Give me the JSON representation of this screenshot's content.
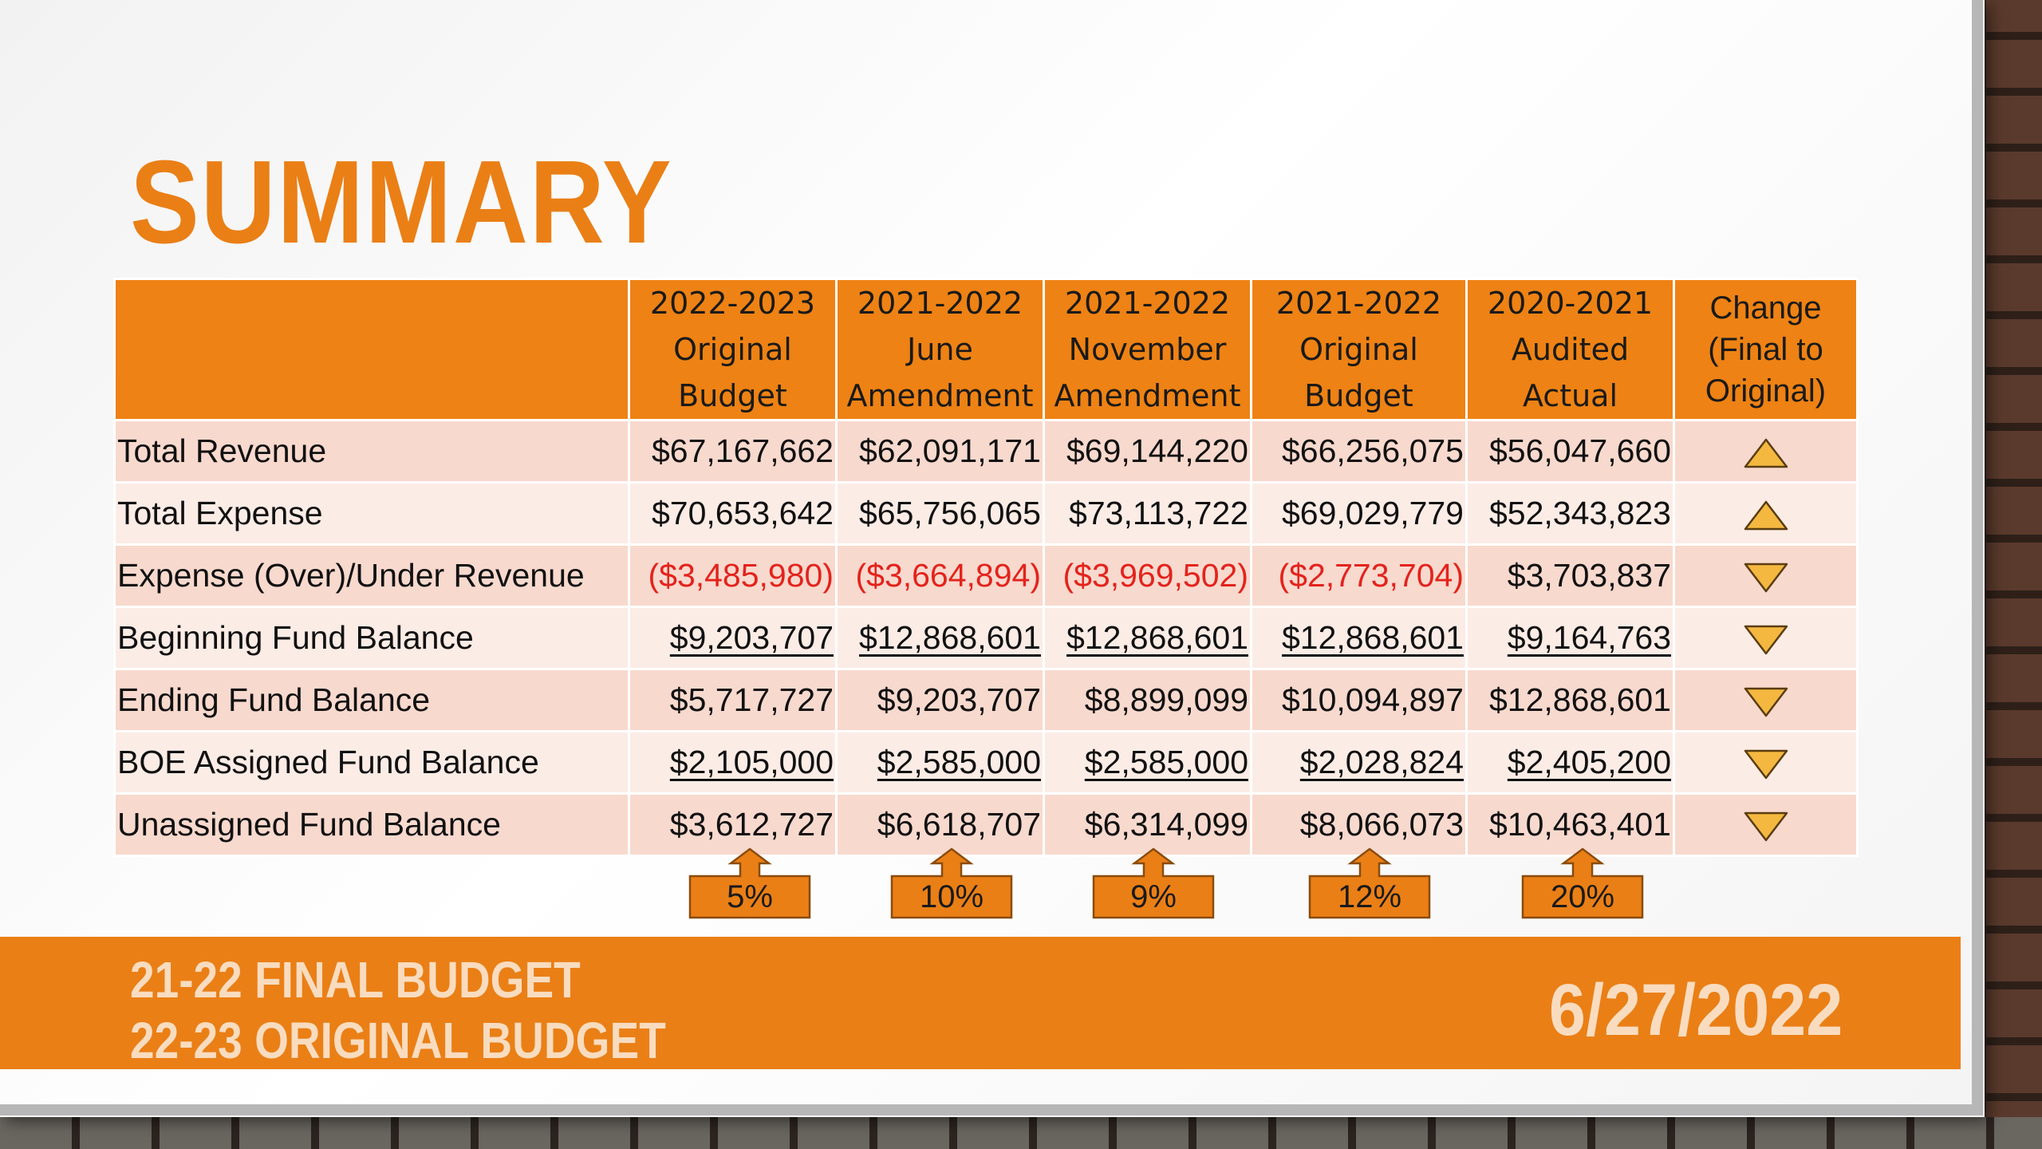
{
  "title": "SUMMARY",
  "table": {
    "headers": [
      "",
      "2022-2023\nOriginal\nBudget",
      "2021-2022\nJune\nAmendment",
      "2021-2022\nNovember\nAmendment",
      "2021-2022\nOriginal\nBudget",
      "2020-2021\nAudited\nActual",
      "Change\n(Final to\nOriginal)"
    ],
    "rows": [
      {
        "label": "Total Revenue",
        "values": [
          "$67,167,662",
          "$62,091,171",
          "$69,144,220",
          "$66,256,075",
          "$56,047,660"
        ],
        "change": "up",
        "negative": false,
        "underline": false
      },
      {
        "label": "Total Expense",
        "values": [
          "$70,653,642",
          "$65,756,065",
          "$73,113,722",
          "$69,029,779",
          "$52,343,823"
        ],
        "change": "up",
        "negative": false,
        "underline": false
      },
      {
        "label": "Expense (Over)/Under Revenue",
        "values": [
          "($3,485,980)",
          "($3,664,894)",
          "($3,969,502)",
          "($2,773,704)",
          "$3,703,837"
        ],
        "change": "down",
        "negative": true,
        "underline": false
      },
      {
        "label": "Beginning Fund Balance",
        "values": [
          "$9,203,707",
          "$12,868,601",
          "$12,868,601",
          "$12,868,601",
          "$9,164,763"
        ],
        "change": "down",
        "negative": false,
        "underline": true
      },
      {
        "label": "Ending Fund Balance",
        "values": [
          "$5,717,727",
          "$9,203,707",
          "$8,899,099",
          "$10,094,897",
          "$12,868,601"
        ],
        "change": "down",
        "negative": false,
        "underline": false
      },
      {
        "label": "BOE Assigned Fund Balance",
        "values": [
          "$2,105,000",
          "$2,585,000",
          "$2,585,000",
          "$2,028,824",
          "$2,405,200"
        ],
        "change": "down",
        "negative": false,
        "underline": true
      },
      {
        "label": "Unassigned Fund Balance",
        "values": [
          "$3,612,727",
          "$6,618,707",
          "$6,314,099",
          "$8,066,073",
          "$10,463,401"
        ],
        "change": "down",
        "negative": false,
        "underline": false
      }
    ],
    "percentages": [
      "5%",
      "10%",
      "9%",
      "12%",
      "20%"
    ]
  },
  "footer": {
    "line1": "21-22 FINAL BUDGET",
    "line2": "22-23 ORIGINAL BUDGET",
    "date": "6/27/2022"
  },
  "colors": {
    "accent": "#EA7F16",
    "header_bg": "#EE8214",
    "row_odd": "#F8D9CE",
    "row_even": "#FCECE6",
    "negative_text": "#E3231C",
    "arrow_up_fill": "#F4B840",
    "arrow_down_fill": "#F4B840"
  },
  "icons": {
    "up": "triangle-up-icon",
    "down": "triangle-down-icon"
  }
}
